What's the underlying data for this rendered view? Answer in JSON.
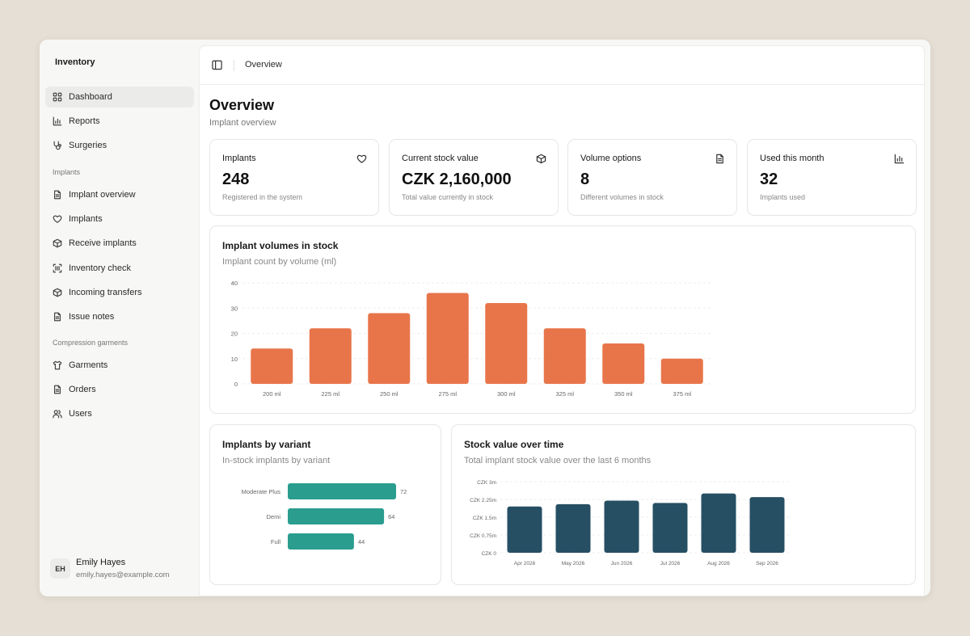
{
  "app": {
    "title": "Inventory"
  },
  "sidebar": {
    "top_items": [
      {
        "label": "Dashboard",
        "icon": "dashboard-grid-icon",
        "active": true
      },
      {
        "label": "Reports",
        "icon": "bar-chart-icon"
      },
      {
        "label": "Surgeries",
        "icon": "stethoscope-icon"
      }
    ],
    "sections": [
      {
        "label": "Implants",
        "items": [
          {
            "label": "Implant overview",
            "icon": "document-icon"
          },
          {
            "label": "Implants",
            "icon": "heart-icon"
          },
          {
            "label": "Receive implants",
            "icon": "package-icon"
          },
          {
            "label": "Inventory check",
            "icon": "scan-barcode-icon"
          },
          {
            "label": "Incoming transfers",
            "icon": "package-icon"
          },
          {
            "label": "Issue notes",
            "icon": "document-icon"
          }
        ]
      },
      {
        "label": "Compression garments",
        "items": [
          {
            "label": "Garments",
            "icon": "shirt-icon"
          },
          {
            "label": "Orders",
            "icon": "document-icon"
          },
          {
            "label": "Users",
            "icon": "users-icon"
          }
        ]
      }
    ],
    "user": {
      "initials": "EH",
      "name": "Emily Hayes",
      "email": "emily.hayes@example.com"
    }
  },
  "topbar": {
    "breadcrumb": "Overview"
  },
  "page": {
    "title": "Overview",
    "subtitle": "Implant overview"
  },
  "stats": [
    {
      "title": "Implants",
      "value": "248",
      "desc": "Registered in the system",
      "icon": "heart-icon"
    },
    {
      "title": "Current stock value",
      "value": "CZK 2,160,000",
      "desc": "Total value currently in stock",
      "icon": "package-icon"
    },
    {
      "title": "Volume options",
      "value": "8",
      "desc": "Different volumes in stock",
      "icon": "document-icon"
    },
    {
      "title": "Used this month",
      "value": "32",
      "desc": "Implants used",
      "icon": "bar-chart-icon"
    }
  ],
  "colors": {
    "orange": "#e8754a",
    "teal": "#2a9d8f",
    "navy": "#264f63"
  },
  "chart_data": [
    {
      "type": "bar",
      "title": "Implant volumes in stock",
      "subtitle": "Implant count by volume (ml)",
      "categories": [
        "200 ml",
        "225 ml",
        "250 ml",
        "275 ml",
        "300 ml",
        "325 ml",
        "350 ml",
        "375 ml"
      ],
      "values": [
        14,
        22,
        28,
        36,
        32,
        22,
        16,
        10
      ],
      "ylim": [
        0,
        40
      ],
      "yticks": [
        "0",
        "10",
        "20",
        "30",
        "40"
      ],
      "grid": true,
      "color": "#e8754a"
    },
    {
      "type": "bar",
      "orientation": "horizontal",
      "title": "Implants by variant",
      "subtitle": "In-stock implants by variant",
      "categories": [
        "Moderate Plus",
        "Demi",
        "Full"
      ],
      "values": [
        72,
        64,
        44
      ],
      "data_labels": [
        "72",
        "64",
        "44"
      ],
      "color": "#2a9d8f"
    },
    {
      "type": "bar",
      "title": "Stock value over time",
      "subtitle": "Total implant stock value over the last 6 months",
      "categories": [
        "Apr 2026",
        "May 2026",
        "Jun 2026",
        "Jul 2026",
        "Aug 2026",
        "Sep 2026"
      ],
      "values": [
        1.95,
        2.05,
        2.2,
        2.1,
        2.5,
        2.35
      ],
      "unit": "CZK millions",
      "ylim": [
        0,
        3
      ],
      "yticks": [
        "CZK 0",
        "CZK 0.75m",
        "CZK 1.5m",
        "CZK 2.25m",
        "CZK 3m"
      ],
      "grid": true,
      "color": "#264f63"
    }
  ]
}
